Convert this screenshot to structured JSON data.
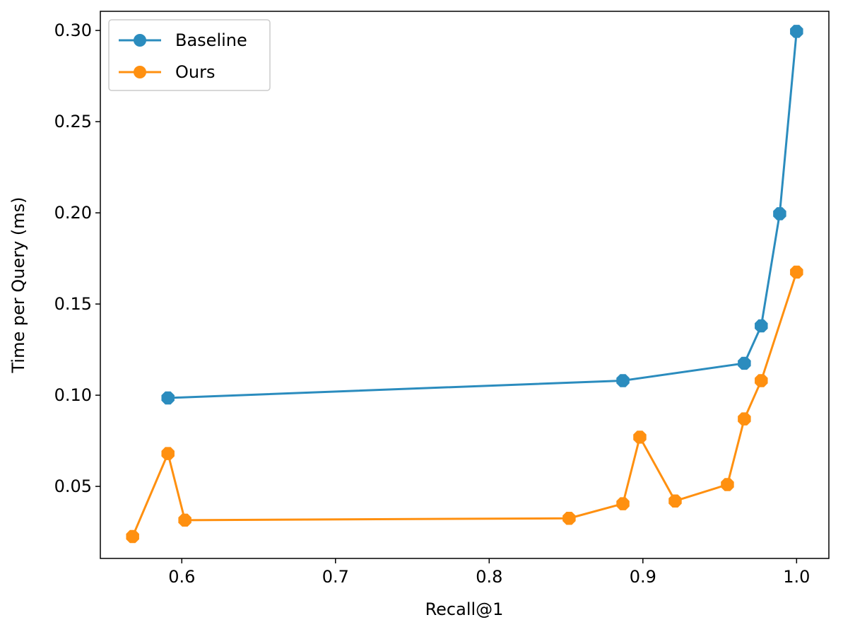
{
  "chart_data": {
    "type": "line",
    "title": "",
    "xlabel": "Recall@1",
    "ylabel": "Time per Query (ms)",
    "xlim": [
      0.547,
      1.021
    ],
    "ylim": [
      0.0105,
      0.3105
    ],
    "xticks": [
      0.6,
      0.7,
      0.8,
      0.9,
      1.0
    ],
    "xtick_labels": [
      "0.6",
      "0.7",
      "0.8",
      "0.9",
      "1.0"
    ],
    "yticks": [
      0.05,
      0.1,
      0.15,
      0.2,
      0.25,
      0.3
    ],
    "ytick_labels": [
      "0.05",
      "0.10",
      "0.15",
      "0.20",
      "0.25",
      "0.30"
    ],
    "grid": false,
    "legend_position": "upper-left",
    "series": [
      {
        "name": "Baseline",
        "color": "#2b8cbe",
        "marker": "octagon",
        "x": [
          0.591,
          0.887,
          0.966,
          0.977,
          0.989,
          1.0
        ],
        "y": [
          0.0985,
          0.108,
          0.1175,
          0.138,
          0.1995,
          0.2995
        ]
      },
      {
        "name": "Ours",
        "color": "#ff9010",
        "marker": "octagon",
        "x": [
          0.568,
          0.591,
          0.602,
          0.852,
          0.887,
          0.898,
          0.921,
          0.955,
          0.966,
          0.977,
          1.0
        ],
        "y": [
          0.0225,
          0.068,
          0.0315,
          0.0325,
          0.0405,
          0.077,
          0.042,
          0.051,
          0.087,
          0.108,
          0.1675
        ]
      }
    ]
  }
}
